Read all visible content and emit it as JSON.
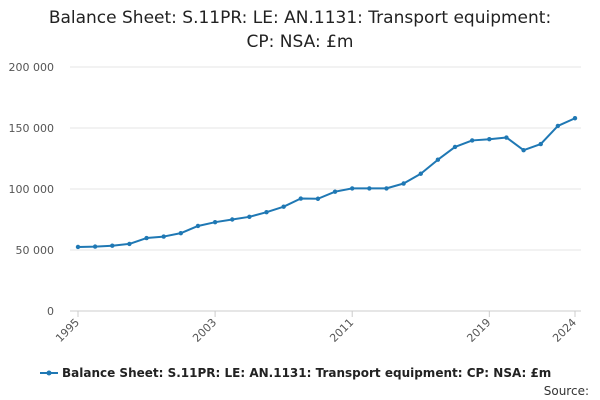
{
  "chart_data": {
    "type": "line",
    "title_lines": [
      "Balance Sheet: S.11PR: LE: AN.1131: Transport equipment:",
      "CP: NSA: £m"
    ],
    "x": [
      1995,
      1996,
      1997,
      1998,
      1999,
      2000,
      2001,
      2002,
      2003,
      2004,
      2005,
      2006,
      2007,
      2008,
      2009,
      2010,
      2011,
      2012,
      2013,
      2014,
      2015,
      2016,
      2017,
      2018,
      2019,
      2020,
      2021,
      2022,
      2023,
      2024
    ],
    "series": [
      {
        "name": "Balance Sheet: S.11PR: LE: AN.1131: Transport equipment: CP: NSA: £m",
        "color": "#1f78b4",
        "values": [
          52500,
          52800,
          53500,
          55000,
          59800,
          61000,
          63800,
          69700,
          72800,
          75000,
          77200,
          81000,
          85500,
          92200,
          92000,
          97800,
          100500,
          100500,
          100500,
          104500,
          112500,
          124000,
          134500,
          139800,
          140800,
          142200,
          131800,
          136800,
          151700,
          158000
        ]
      }
    ],
    "x_ticks": [
      {
        "value": 1995,
        "label": "1995"
      },
      {
        "value": 2003,
        "label": "2003"
      },
      {
        "value": 2011,
        "label": "2011"
      },
      {
        "value": 2019,
        "label": "2019"
      },
      {
        "value": 2024,
        "label": "2024"
      }
    ],
    "y_ticks": [
      {
        "value": 0,
        "label": "0"
      },
      {
        "value": 50000,
        "label": "50 000"
      },
      {
        "value": 100000,
        "label": "100 000"
      },
      {
        "value": 150000,
        "label": "150 000"
      },
      {
        "value": 200000,
        "label": "200 000"
      }
    ],
    "ylim": [
      0,
      200000
    ],
    "xlim": [
      1995,
      2024
    ],
    "grid": true,
    "legend_position": "bottom",
    "source_label": "Source:",
    "colors": {
      "grid": "#e6e6e6",
      "axis": "#cccccc",
      "tick_text": "#555555"
    }
  }
}
